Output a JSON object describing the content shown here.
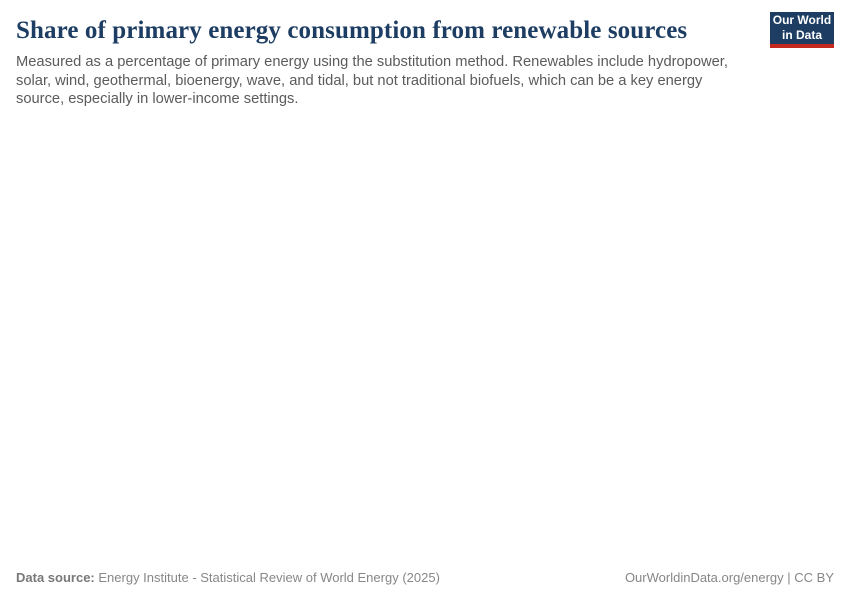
{
  "header": {
    "title": "Share of primary energy consumption from renewable sources",
    "subtitle": "Measured as a percentage of primary energy using the substitution method. Renewables include hydropower, solar, wind, geothermal, bioenergy, wave, and tidal, but not traditional biofuels, which can be a key energy source, especially in lower-income settings.",
    "logo": {
      "line1": "Our World",
      "line2": "in Data"
    }
  },
  "footer": {
    "source_label": "Data source:",
    "source_text": "Energy Institute - Statistical Review of World Energy (2025)",
    "link_text": "OurWorldinData.org/energy | CC BY"
  },
  "colors": {
    "background": "#ffffff",
    "title": "#1d3d63",
    "subtitle": "#5b5b5b",
    "footer_text": "#878787",
    "logo_background": "#1d3d63",
    "logo_accent": "#c5281f"
  },
  "chart_data": {
    "type": "line",
    "title": "Share of primary energy consumption from renewable sources",
    "subtitle": "Measured as a percentage of primary energy using the substitution method. Renewables include hydropower, solar, wind, geothermal, bioenergy, wave, and tidal, but not traditional biofuels, which can be a key energy source, especially in lower-income settings.",
    "xlabel": "",
    "ylabel": "",
    "categories": [],
    "series": [],
    "note": "Plot area is blank in the screenshot; no axes, gridlines, legend, or data points are rendered."
  }
}
